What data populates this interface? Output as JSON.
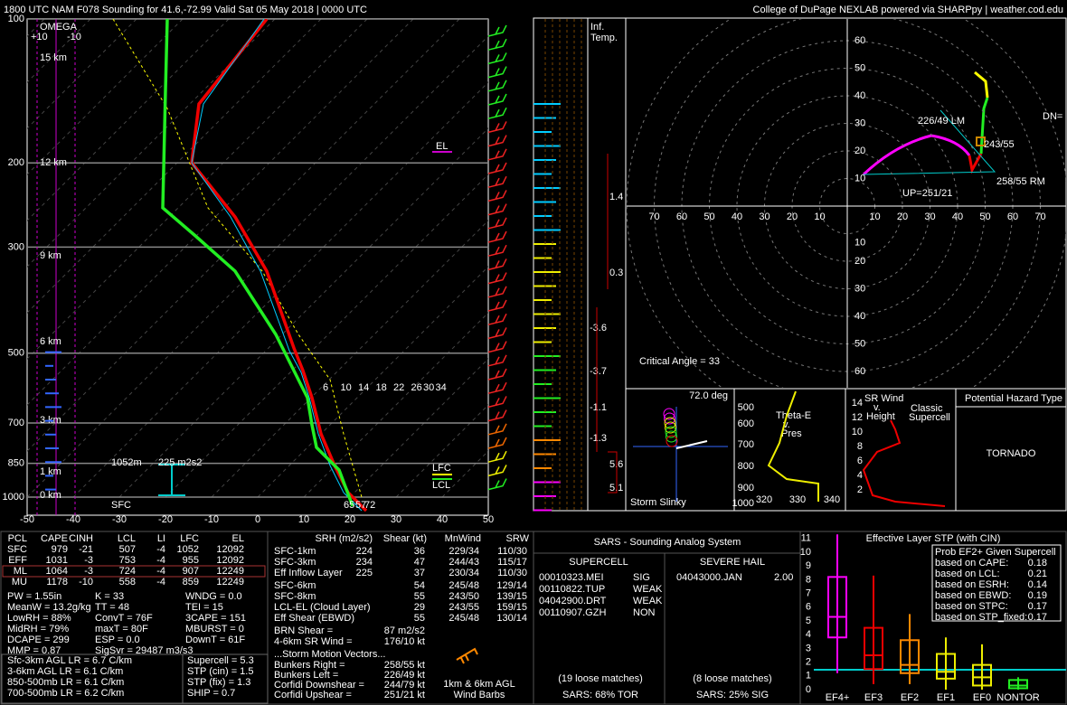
{
  "header": {
    "title": "1800 UTC NAM F078 Sounding for 41.6,-72.99 Valid  Sat 05 May 2018 | 0000 UTC",
    "credit": "College of DuPage NEXLAB powered via SHARPpy | weather.cod.edu"
  },
  "skewt": {
    "pressure_levels": [
      100,
      200,
      300,
      500,
      700,
      850,
      1000
    ],
    "heights": [
      "15 km",
      "12 km",
      "9 km",
      "6 km",
      "3 km",
      "1 km",
      "0 km"
    ],
    "temps": [
      -50,
      -40,
      -30,
      -20,
      -10,
      0,
      10,
      20,
      30,
      40,
      50
    ],
    "omega": [
      "OMEGA",
      "+10",
      "-10"
    ],
    "el": "EL",
    "lfc": "LFC",
    "lcl": "LCL",
    "lfc_height": "1052m",
    "esrh": "225 m2s2",
    "sfc": "SFC",
    "sfc_td": "65",
    "sfc_tw": "57",
    "sfc_t": "72",
    "mixing_ratios": [
      "6",
      "10",
      "14",
      "18",
      "22",
      "26",
      "30",
      "34"
    ]
  },
  "inferred": {
    "title": [
      "Inf.",
      "Temp."
    ],
    "values": [
      "1.4",
      "0.3",
      "-3.6",
      "-3.7",
      "-1.1",
      "-1.3",
      "5.6",
      "5.1"
    ]
  },
  "hodograph": {
    "y_labels_top": [
      "60",
      "50",
      "40",
      "30",
      "20",
      "10"
    ],
    "y_labels_bottom": [
      "10",
      "20",
      "30",
      "40",
      "50",
      "60"
    ],
    "x_labels_left": [
      "70",
      "60",
      "50",
      "40",
      "30",
      "20",
      "10"
    ],
    "x_labels_right": [
      "10",
      "20",
      "30",
      "40",
      "50",
      "60",
      "70"
    ],
    "lm": "226/49 LM",
    "dn": "DN=",
    "mean": "243/55",
    "rm": "258/55 RM",
    "up": "UP=251/21",
    "critical_angle": "Critical Angle = 33"
  },
  "insets": {
    "slinky_angle": "72.0 deg",
    "slinky_title": "Storm Slinky",
    "thetae_pressures": [
      "500",
      "600",
      "700",
      "800",
      "900",
      "1000"
    ],
    "thetae_title": [
      "Theta-E",
      "v.",
      "Pres"
    ],
    "thetae_x": [
      "320",
      "330",
      "340"
    ],
    "srwind_title": [
      "SR Wind",
      "v.",
      "Height"
    ],
    "srwind_heights": [
      "14",
      "12",
      "10",
      "8",
      "6",
      "4",
      "2"
    ],
    "srwind_legend": [
      "Classic",
      "Supercell"
    ],
    "hazard_title": "Potential Hazard Type",
    "hazard": "TORNADO"
  },
  "thermo": {
    "headers": [
      "PCL",
      "CAPE",
      "CINH",
      "LCL",
      "LI",
      "LFC",
      "EL"
    ],
    "rows": [
      [
        "SFC",
        "979",
        "-21",
        "507",
        "-4",
        "1052",
        "12092"
      ],
      [
        "EFF",
        "1031",
        "-3",
        "753",
        "-4",
        "955",
        "12092"
      ],
      [
        "ML",
        "1064",
        "-3",
        "724",
        "-4",
        "907",
        "12249"
      ],
      [
        "MU",
        "1178",
        "-10",
        "558",
        "-4",
        "859",
        "12249"
      ]
    ],
    "indices": [
      "PW = 1.55in",
      "K = 33",
      "WNDG = 0.0",
      "MeanW = 13.2g/kg",
      "TT = 48",
      "TEI = 15",
      "LowRH = 88%",
      "ConvT = 76F",
      "3CAPE = 151",
      "MidRH = 79%",
      "maxT = 80F",
      "MBURST = 0",
      "DCAPE = 299",
      "ESP = 0.0",
      "DownT = 61F",
      "MMP = 0.87",
      "SigSvr = 29487 m3/s3"
    ],
    "lapse_rates": [
      "Sfc-3km AGL LR = 6.7 C/km",
      "3-6km AGL LR = 6.1 C/km",
      "850-500mb LR = 6.1 C/km",
      "700-500mb LR = 6.2 C/km"
    ],
    "params": [
      "Supercell = 5.3",
      "STP (cin) = 1.5",
      "STP (fix) = 1.3",
      "SHIP = 0.7"
    ]
  },
  "kinematics": {
    "headers": [
      "SRH (m2/s2)",
      "Shear (kt)",
      "MnWind",
      "SRW"
    ],
    "rows": [
      [
        "SFC-1km",
        "224",
        "36",
        "229/34",
        "110/30"
      ],
      [
        "SFC-3km",
        "234",
        "47",
        "244/43",
        "115/17"
      ],
      [
        "Eff Inflow Layer",
        "225",
        "37",
        "230/34",
        "110/30"
      ],
      [
        "SFC-6km",
        "",
        "54",
        "245/48",
        "129/14"
      ],
      [
        "SFC-8km",
        "",
        "55",
        "243/50",
        "139/15"
      ],
      [
        "LCL-EL (Cloud Layer)",
        "",
        "29",
        "243/55",
        "159/15"
      ],
      [
        "Eff Shear (EBWD)",
        "",
        "55",
        "245/48",
        "130/14"
      ]
    ],
    "brn": [
      "BRN Shear =",
      "87 m2/s2"
    ],
    "sr46": [
      "4-6km SR Wind =",
      "176/10 kt"
    ],
    "motion_title": "...Storm Motion Vectors...",
    "motions": [
      [
        "Bunkers Right =",
        "258/55 kt"
      ],
      [
        "Bunkers Left =",
        "226/49 kt"
      ],
      [
        "Corfidi Downshear =",
        "244/79 kt"
      ],
      [
        "Corfidi Upshear =",
        "251/21 kt"
      ]
    ],
    "barb_note": [
      "1km & 6km AGL",
      "Wind Barbs"
    ]
  },
  "sars": {
    "title": "SARS - Sounding Analog System",
    "supercell_title": "SUPERCELL",
    "hail_title": "SEVERE HAIL",
    "supercell": [
      [
        "00010323.MEI",
        "SIG"
      ],
      [
        "00110822.TUP",
        "WEAK"
      ],
      [
        "04042900.DRT",
        "WEAK"
      ],
      [
        "00110907.GZH",
        "NON"
      ]
    ],
    "hail": [
      [
        "04043000.JAN",
        "2.00"
      ]
    ],
    "supercell_loose": "(19 loose matches)",
    "hail_loose": "(8 loose matches)",
    "supercell_summary": "SARS: 68% TOR",
    "hail_summary": "SARS: 25% SIG"
  },
  "stp": {
    "title": "Effective Layer STP (with CIN)",
    "yticks": [
      "0",
      "1",
      "2",
      "3",
      "4",
      "5",
      "6",
      "7",
      "8",
      "9",
      "10",
      "11"
    ],
    "categories": [
      "EF4+",
      "EF3",
      "EF2",
      "EF1",
      "EF0",
      "NONTOR"
    ],
    "prob_title": "Prob EF2+ Given Supercell",
    "prob": [
      [
        "based on CAPE:",
        "0.18"
      ],
      [
        "based on LCL:",
        "0.21"
      ],
      [
        "based on ESRH:",
        "0.14"
      ],
      [
        "based on EBWD:",
        "0.19"
      ],
      [
        "based on STPC:",
        "0.17"
      ],
      [
        "based on STP_fixed:",
        "0.17"
      ]
    ]
  }
}
